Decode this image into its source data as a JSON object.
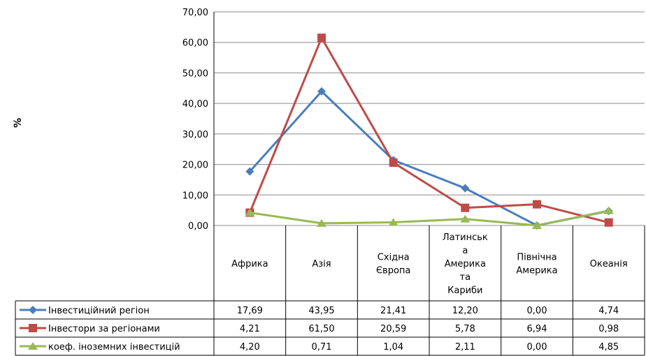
{
  "chart_data": {
    "type": "line",
    "ylabel": "%",
    "ylim": [
      0,
      70
    ],
    "yticks": [
      "0,00",
      "10,00",
      "20,00",
      "30,00",
      "40,00",
      "50,00",
      "60,00",
      "70,00"
    ],
    "categories": [
      [
        "Африка"
      ],
      [
        "Азія"
      ],
      [
        "Східна",
        "Європа"
      ],
      [
        "Латинськ",
        "а",
        "Америка",
        "та",
        "Кариби"
      ],
      [
        "Північна",
        "Америка"
      ],
      [
        "Океанія"
      ]
    ],
    "series": [
      {
        "name": "Інвестиційний регіон",
        "color": "#4a7ebb",
        "marker": "diamond",
        "values": [
          17.69,
          43.95,
          21.41,
          12.2,
          0.0,
          4.74
        ],
        "labels": [
          "17,69",
          "43,95",
          "21,41",
          "12,20",
          "0,00",
          "4,74"
        ]
      },
      {
        "name": "Інвестори за регіонами",
        "color": "#be4b48",
        "marker": "square",
        "values": [
          4.21,
          61.5,
          20.59,
          5.78,
          6.94,
          0.98
        ],
        "labels": [
          "4,21",
          "61,50",
          "20,59",
          "5,78",
          "6,94",
          "0,98"
        ]
      },
      {
        "name": "коеф. іноземних інвестицій",
        "color": "#98b954",
        "marker": "triangle",
        "values": [
          4.2,
          0.71,
          1.04,
          2.11,
          0.0,
          4.85
        ],
        "labels": [
          "4,20",
          "0,71",
          "1,04",
          "2,11",
          "0,00",
          "4,85"
        ]
      }
    ]
  }
}
